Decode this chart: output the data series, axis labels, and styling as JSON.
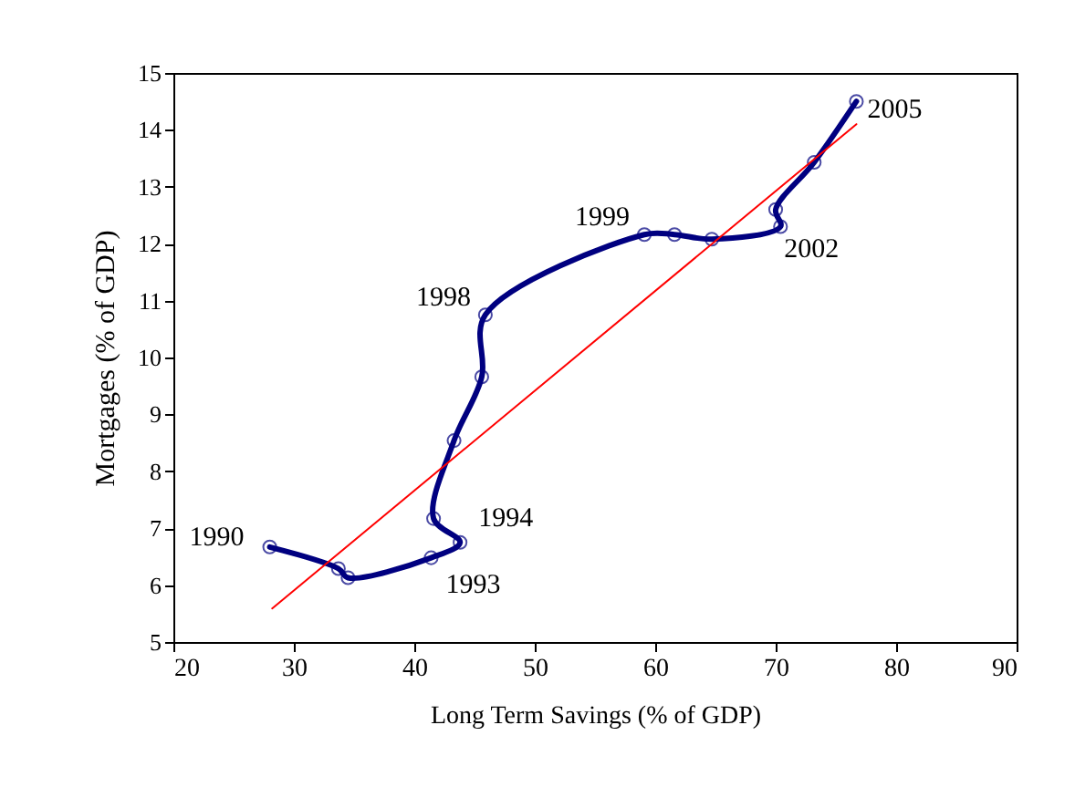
{
  "chart_data": {
    "type": "line",
    "xlabel": "Long Term Savings (% of GDP)",
    "ylabel": "Mortgages (% of GDP)",
    "xlim": [
      20,
      90
    ],
    "xticks": [
      20,
      30,
      40,
      50,
      60,
      70,
      80,
      90
    ],
    "ylim": [
      5,
      15
    ],
    "yticks": [
      5,
      6,
      7,
      8,
      9,
      10,
      11,
      12,
      13,
      14,
      15
    ],
    "grid": false,
    "series": [
      {
        "color": "#000080",
        "marker": "circle",
        "x": [
          28.0,
          33.7,
          34.5,
          41.4,
          43.8,
          41.6,
          43.3,
          45.6,
          45.9,
          59.1,
          61.6,
          64.7,
          70.4,
          70.0,
          73.2,
          76.7
        ],
        "values": [
          6.67,
          6.29,
          6.13,
          6.48,
          6.75,
          7.17,
          8.54,
          9.66,
          10.75,
          12.16,
          12.16,
          12.08,
          12.3,
          12.6,
          13.43,
          14.5
        ]
      },
      {
        "type": "line",
        "color": "#ff0000",
        "marker": "none",
        "x": [
          28.2,
          76.7
        ],
        "values": [
          5.59,
          14.1
        ]
      }
    ],
    "annotations": [
      {
        "text": "1990",
        "x": 28.0,
        "y": 6.67
      },
      {
        "text": "1993",
        "x": 41.4,
        "y": 6.48
      },
      {
        "text": "1994",
        "x": 43.8,
        "y": 6.75
      },
      {
        "text": "1998",
        "x": 45.9,
        "y": 10.75
      },
      {
        "text": "1999",
        "x": 59.1,
        "y": 12.16
      },
      {
        "text": "2002",
        "x": 70.4,
        "y": 12.3
      },
      {
        "text": "2005",
        "x": 76.7,
        "y": 14.5
      }
    ]
  }
}
